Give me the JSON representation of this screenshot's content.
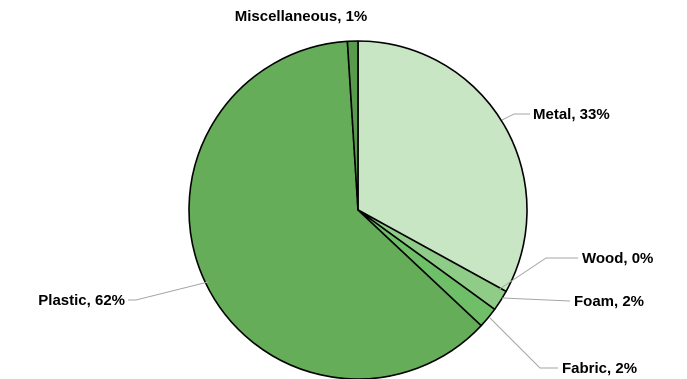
{
  "chart_data": {
    "type": "pie",
    "title": "",
    "start_angle_deg": 0,
    "direction": "clockwise",
    "slices": [
      {
        "name": "Metal",
        "value": 33,
        "label": "Metal, 33%",
        "color": "#c8e6c4"
      },
      {
        "name": "Wood",
        "value": 0,
        "label": "Wood, 0%",
        "color": "#a8d5a0"
      },
      {
        "name": "Foam",
        "value": 2,
        "label": "Foam, 2%",
        "color": "#8fcc87"
      },
      {
        "name": "Fabric",
        "value": 2,
        "label": "Fabric, 2%",
        "color": "#6fbf68"
      },
      {
        "name": "Plastic",
        "value": 62,
        "label": "Plastic, 62%",
        "color": "#66ad5a"
      },
      {
        "name": "Miscellaneous",
        "value": 1,
        "label": "Miscellaneous, 1%",
        "color": "#5a9a4f"
      }
    ],
    "legend": "none",
    "label_style": "outside with leader lines"
  }
}
